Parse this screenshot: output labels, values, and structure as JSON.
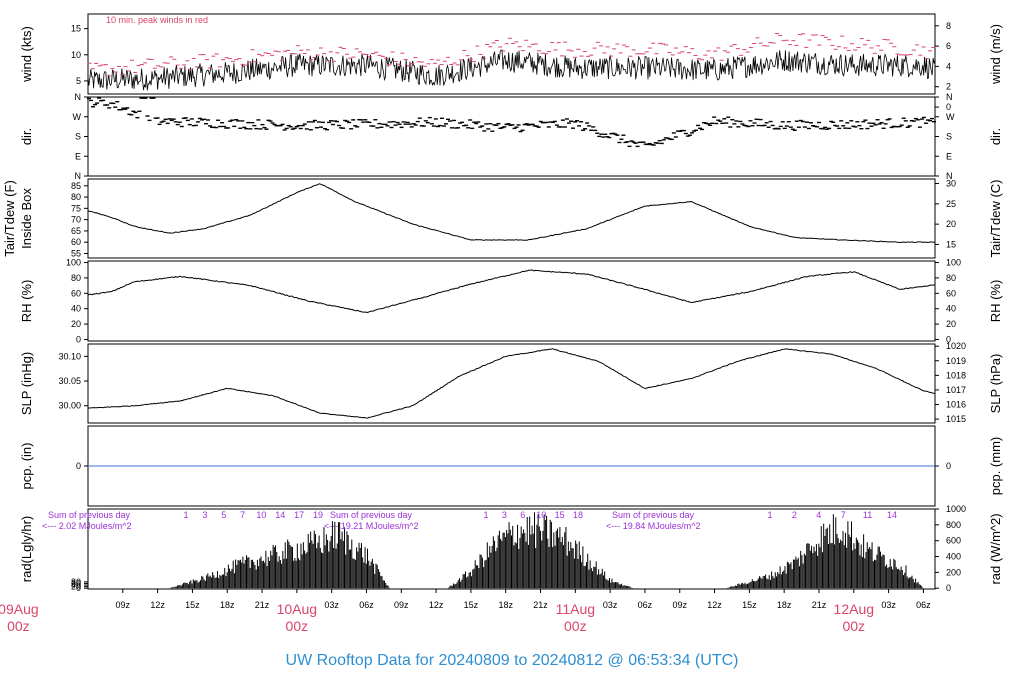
{
  "title": "UW Rooftop Data for 20240809  to  20240812 @ 06:53:34  (UTC)",
  "colors": {
    "title": "#2f8fd1",
    "date_labels": "#d9456b",
    "peak_note": "#d9456b",
    "radiation_notes": "#9b30d9",
    "precip_line": "#4b6cd6",
    "series": "#000000"
  },
  "chart_data": {
    "type": "line",
    "x_axis": {
      "range_utc": [
        "2024-08-09 06:00",
        "2024-08-12 07:00"
      ],
      "tick_labels": [
        "09z",
        "12z",
        "15z",
        "18z",
        "21z",
        "03z",
        "06z",
        "09z",
        "12z",
        "15z",
        "18z",
        "21z",
        "03z",
        "06z",
        "09z",
        "12z",
        "15z",
        "18z",
        "21z",
        "03z",
        "06z"
      ],
      "date_labels": [
        {
          "day": "09Aug",
          "hour": "00z"
        },
        {
          "day": "10Aug",
          "hour": "00z"
        },
        {
          "day": "11Aug",
          "hour": "00z"
        },
        {
          "day": "12Aug",
          "hour": "00z"
        }
      ]
    },
    "panels": [
      {
        "id": "wind",
        "ylabel_left": "wind (kts)",
        "ylabel_right": "wind (m/s)",
        "left_ticks": [
          "5",
          "10",
          "15"
        ],
        "right_ticks": [
          "0",
          "2",
          "4",
          "6",
          "8"
        ],
        "annotation": "10 min. peak winds in red",
        "series": [
          {
            "name": "wind speed",
            "x_hours": [
              0,
              6,
              12,
              18,
              24,
              30,
              36,
              42,
              48,
              54,
              60,
              66,
              72,
              73
            ],
            "values": [
              5,
              5.5,
              6.5,
              8,
              8,
              6,
              9,
              7.5,
              7.5,
              7,
              9,
              8,
              8,
              7
            ]
          },
          {
            "name": "10 min. peak winds",
            "x_hours": [
              0,
              6,
              12,
              18,
              24,
              30,
              36,
              42,
              48,
              54,
              60,
              66,
              72,
              73
            ],
            "values": [
              7,
              8,
              9,
              10.5,
              10,
              8,
              12,
              11,
              11,
              10,
              13,
              12,
              11,
              10
            ]
          }
        ]
      },
      {
        "id": "direction",
        "ylabel_left": "dir.",
        "ylabel_right": "dir.",
        "left_ticks": [
          "N",
          "E",
          "S",
          "W",
          "N"
        ],
        "right_ticks": [
          "N",
          "E",
          "S",
          "W",
          "N"
        ],
        "series": [
          {
            "name": "wind direction (deg)",
            "x_hours": [
              0,
              2,
              6,
              12,
              18,
              24,
              30,
              36,
              42,
              48,
              54,
              60,
              66,
              72,
              73
            ],
            "values": [
              340,
              330,
              250,
              240,
              230,
              235,
              245,
              220,
              240,
              130,
              250,
              230,
              235,
              245,
              240
            ]
          }
        ]
      },
      {
        "id": "temperature",
        "ylabel_left": "Tair/Tdew (F)",
        "ylabel_left2": "Inside Box",
        "ylabel_right": "Tair/Tdew (C)",
        "left_ticks": [
          "55",
          "60",
          "65",
          "70",
          "75",
          "80",
          "85"
        ],
        "right_ticks": [
          "15",
          "20",
          "25",
          "30"
        ],
        "series": [
          {
            "name": "air temperature (F)",
            "x_hours": [
              0,
              2,
              4,
              7,
              10,
              14,
              18,
              20,
              23,
              28,
              33,
              38,
              43,
              48,
              52,
              57,
              61,
              65,
              70,
              73
            ],
            "values": [
              74,
              71,
              67,
              64,
              66,
              72,
              82,
              86,
              78,
              68,
              61,
              61,
              66,
              76,
              78,
              67,
              62,
              61,
              60,
              60
            ]
          }
        ]
      },
      {
        "id": "rh",
        "ylabel_left": "RH (%)",
        "ylabel_right": "RH (%)",
        "left_ticks": [
          "0",
          "20",
          "40",
          "60",
          "80",
          "100"
        ],
        "right_ticks": [
          "0",
          "20",
          "40",
          "60",
          "80",
          "100"
        ],
        "series": [
          {
            "name": "relative humidity (%)",
            "x_hours": [
              0,
              2,
              4,
              8,
              14,
              19,
              24,
              29,
              33,
              38,
              43,
              48,
              52,
              57,
              62,
              66,
              70,
              73
            ],
            "values": [
              58,
              62,
              75,
              82,
              70,
              50,
              35,
              55,
              72,
              90,
              85,
              65,
              48,
              62,
              82,
              88,
              65,
              71
            ]
          }
        ]
      },
      {
        "id": "slp",
        "ylabel_left": "SLP (inHg)",
        "ylabel_right": "SLP (hPa)",
        "left_ticks": [
          "30.00",
          "30.05",
          "30.10"
        ],
        "right_ticks": [
          "1015",
          "1016",
          "1017",
          "1018",
          "1019",
          "1020"
        ],
        "series": [
          {
            "name": "sea level pressure (inHg)",
            "x_hours": [
              0,
              4,
              8,
              12,
              16,
              20,
              24,
              28,
              32,
              36,
              40,
              44,
              48,
              52,
              56,
              60,
              64,
              68,
              72,
              73
            ],
            "values": [
              29.995,
              30.0,
              30.01,
              30.035,
              30.02,
              29.985,
              29.975,
              30.0,
              30.06,
              30.1,
              30.115,
              30.09,
              30.035,
              30.055,
              30.09,
              30.115,
              30.105,
              30.075,
              30.03,
              30.025
            ]
          }
        ]
      },
      {
        "id": "precip",
        "ylabel_left": "pcp. (in)",
        "ylabel_right": "pcp. (mm)",
        "left_ticks": [
          "0"
        ],
        "right_ticks": [
          "0"
        ],
        "series": [
          {
            "name": "precipitation (in)",
            "x_hours": [
              0,
              73
            ],
            "values": [
              0,
              0
            ]
          }
        ]
      },
      {
        "id": "radiation",
        "ylabel_left": "rad(Lgly/hr)",
        "ylabel_right": "rad (W/m^2)",
        "left_ticks": [
          "0",
          "20",
          "40",
          "60",
          "80"
        ],
        "right_ticks": [
          "0",
          "200",
          "400",
          "600",
          "800",
          "1000"
        ],
        "series": [
          {
            "name": "solar radiation (W/m^2)",
            "x_hours": [
              7,
              10,
              13,
              15,
              17,
              20,
              21.5,
              24,
              26,
              31,
              33,
              35,
              37,
              39,
              41,
              43,
              45,
              47,
              49,
              55,
              57,
              59,
              61,
              63,
              65,
              67,
              70,
              72
            ],
            "values": [
              0,
              150,
              350,
              450,
              550,
              700,
              820,
              500,
              0,
              0,
              250,
              650,
              880,
              880,
              750,
              450,
              120,
              0,
              0,
              0,
              100,
              200,
              400,
              750,
              950,
              600,
              350,
              0
            ]
          }
        ],
        "notes": [
          {
            "line1": "Sum of previous day",
            "line2": "<--- 2.02 MJoules/m^2"
          },
          {
            "line1": "Sum of previous day",
            "line2": "<--- 19.21 MJoules/m^2"
          },
          {
            "line1": "Sum of previous day",
            "line2": "<--- 19.84 MJoules/m^2"
          }
        ],
        "hour_markers": [
          [
            "1",
            "3",
            "5",
            "7",
            "10",
            "14",
            "17",
            "19"
          ],
          [
            "1",
            "3",
            "6",
            "10",
            "15",
            "18"
          ],
          [
            "1",
            "2",
            "4",
            "7",
            "11",
            "14"
          ]
        ]
      }
    ]
  }
}
